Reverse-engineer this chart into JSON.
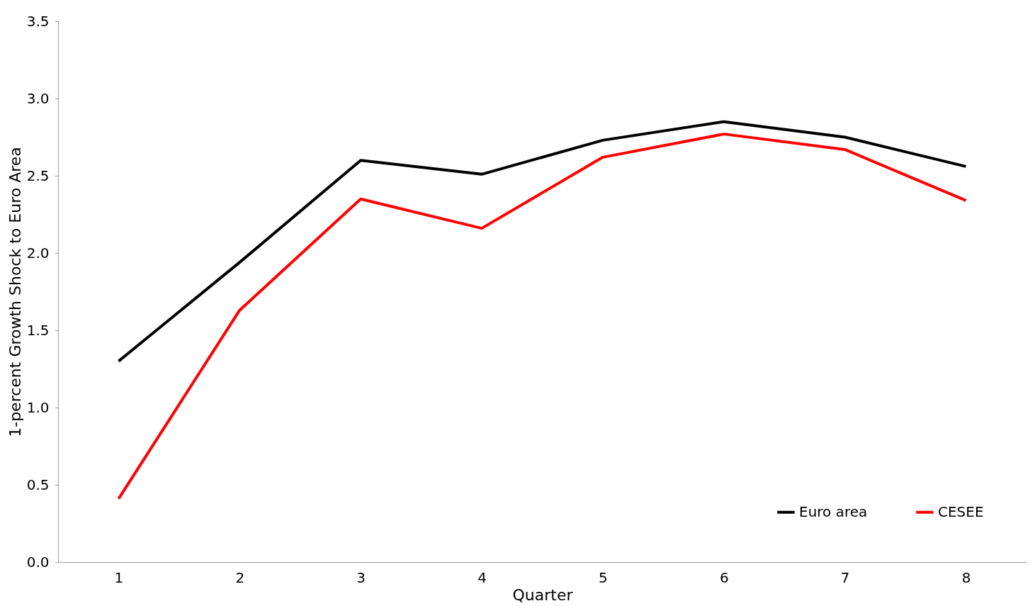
{
  "chart_data": {
    "type": "line",
    "xlabel": "Quarter",
    "ylabel": "1-percent Growth Shock to  Euro Area",
    "categories": [
      "1",
      "2",
      "3",
      "4",
      "5",
      "6",
      "7",
      "8"
    ],
    "series": [
      {
        "name": "Euro area",
        "color": "#000000",
        "values": [
          1.3,
          1.94,
          2.6,
          2.51,
          2.73,
          2.85,
          2.75,
          2.56
        ]
      },
      {
        "name": "CESEE",
        "color": "#ff0000",
        "values": [
          0.41,
          1.63,
          2.35,
          2.16,
          2.62,
          2.77,
          2.67,
          2.34
        ]
      }
    ],
    "ylim": [
      0,
      3.5
    ],
    "yticks": [
      {
        "value": 0,
        "label": "0.0"
      },
      0.5,
      {
        "value": 1,
        "label": "1.0"
      },
      1.5,
      {
        "value": 2,
        "label": "2.0"
      },
      2.5,
      {
        "value": 3,
        "label": "3.0"
      },
      3.5
    ],
    "grid": false,
    "legend": "bottom right",
    "marker": "none",
    "line_style": "solid"
  }
}
